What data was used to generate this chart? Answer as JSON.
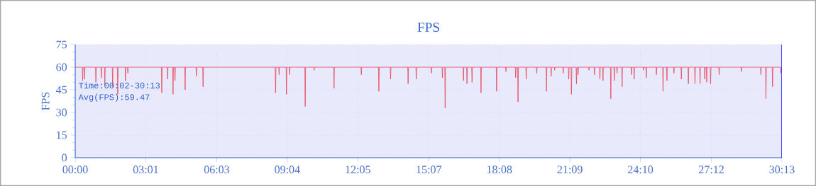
{
  "chart_data": {
    "type": "line",
    "title": "FPS",
    "ylabel": "FPS",
    "annotations": [
      "Time:00:02-30:13",
      "Avg(FPS):59.47"
    ],
    "xlim": [
      0,
      1813
    ],
    "ylim": [
      0,
      75
    ],
    "xticks": [
      {
        "value": 0,
        "label": "00:00"
      },
      {
        "value": 181,
        "label": "03:01"
      },
      {
        "value": 363,
        "label": "06:03"
      },
      {
        "value": 544,
        "label": "09:04"
      },
      {
        "value": 725,
        "label": "12:05"
      },
      {
        "value": 907,
        "label": "15:07"
      },
      {
        "value": 1088,
        "label": "18:08"
      },
      {
        "value": 1269,
        "label": "21:09"
      },
      {
        "value": 1450,
        "label": "24:10"
      },
      {
        "value": 1632,
        "label": "27:12"
      },
      {
        "value": 1813,
        "label": "30:13"
      }
    ],
    "yticks": [
      0,
      15,
      30,
      45,
      60,
      75
    ],
    "grid": true,
    "marker": "none",
    "line_style": "solid",
    "series": [
      {
        "color": "#e8455a",
        "x": [
          0,
          18,
          19,
          20,
          23,
          24,
          25,
          52,
          53,
          54,
          66,
          67,
          68,
          75,
          76,
          77,
          95,
          96,
          97,
          108,
          109,
          110,
          128,
          129,
          130,
          134,
          135,
          136,
          221,
          222,
          223,
          236,
          237,
          238,
          250,
          251,
          252,
          255,
          256,
          257,
          281,
          282,
          283,
          310,
          311,
          312,
          327,
          328,
          329,
          513,
          514,
          515,
          522,
          523,
          524,
          541,
          542,
          543,
          549,
          550,
          551,
          589,
          590,
          591,
          612,
          613,
          614,
          663,
          664,
          665,
          733,
          734,
          735,
          778,
          779,
          780,
          808,
          809,
          810,
          853,
          854,
          855,
          874,
          875,
          876,
          913,
          914,
          915,
          941,
          942,
          943,
          948,
          949,
          950,
          995,
          996,
          997,
          1004,
          1005,
          1006,
          1017,
          1018,
          1019,
          1040,
          1041,
          1042,
          1080,
          1081,
          1082,
          1104,
          1105,
          1106,
          1129,
          1130,
          1131,
          1135,
          1136,
          1137,
          1156,
          1157,
          1158,
          1183,
          1184,
          1185,
          1208,
          1209,
          1210,
          1220,
          1221,
          1222,
          1229,
          1230,
          1231,
          1251,
          1252,
          1253,
          1265,
          1266,
          1267,
          1272,
          1273,
          1274,
          1285,
          1286,
          1287,
          1289,
          1290,
          1291,
          1317,
          1318,
          1319,
          1331,
          1332,
          1333,
          1345,
          1346,
          1347,
          1353,
          1354,
          1355,
          1373,
          1374,
          1375,
          1382,
          1383,
          1384,
          1389,
          1390,
          1391,
          1402,
          1403,
          1404,
          1426,
          1427,
          1428,
          1433,
          1434,
          1435,
          1457,
          1458,
          1459,
          1464,
          1465,
          1466,
          1490,
          1491,
          1492,
          1507,
          1508,
          1509,
          1517,
          1518,
          1519,
          1535,
          1536,
          1537,
          1554,
          1555,
          1556,
          1572,
          1573,
          1574,
          1589,
          1590,
          1591,
          1602,
          1603,
          1604,
          1614,
          1615,
          1616,
          1619,
          1620,
          1621,
          1629,
          1630,
          1631,
          1651,
          1652,
          1653,
          1708,
          1709,
          1710,
          1758,
          1759,
          1760,
          1771,
          1772,
          1773,
          1788,
          1789,
          1790,
          1809,
          1810,
          1813
        ],
        "values": [
          60,
          60,
          51,
          60,
          60,
          52,
          60,
          60,
          50,
          60,
          60,
          53,
          60,
          60,
          48,
          60,
          60,
          47,
          60,
          60,
          42,
          60,
          60,
          51,
          60,
          60,
          56,
          60,
          60,
          43,
          60,
          60,
          52,
          60,
          60,
          42,
          60,
          60,
          51,
          60,
          60,
          45,
          60,
          60,
          54,
          60,
          60,
          47,
          60,
          60,
          43,
          60,
          60,
          55,
          60,
          60,
          42,
          60,
          60,
          55,
          60,
          60,
          34,
          60,
          60,
          58,
          60,
          60,
          46,
          60,
          60,
          55,
          60,
          60,
          44,
          60,
          60,
          52,
          60,
          60,
          49,
          60,
          60,
          52,
          60,
          60,
          56,
          60,
          60,
          53,
          60,
          60,
          33,
          60,
          60,
          51,
          60,
          60,
          49,
          60,
          60,
          50,
          60,
          60,
          43,
          60,
          60,
          44,
          60,
          60,
          57,
          60,
          60,
          53,
          60,
          60,
          37,
          60,
          60,
          52,
          60,
          60,
          56,
          60,
          60,
          44,
          60,
          60,
          54,
          60,
          60,
          58,
          60,
          60,
          56,
          60,
          60,
          52,
          60,
          60,
          42,
          60,
          60,
          49,
          60,
          60,
          55,
          60,
          60,
          58,
          60,
          60,
          55,
          60,
          60,
          52,
          60,
          60,
          51,
          60,
          60,
          39,
          60,
          60,
          51,
          60,
          60,
          56,
          60,
          60,
          47,
          60,
          60,
          55,
          60,
          60,
          52,
          60,
          60,
          58,
          60,
          60,
          53,
          60,
          60,
          55,
          60,
          60,
          44,
          60,
          60,
          51,
          60,
          60,
          56,
          60,
          60,
          52,
          60,
          60,
          49,
          60,
          60,
          49,
          60,
          60,
          49,
          60,
          60,
          52,
          60,
          60,
          50,
          60,
          60,
          49,
          60,
          60,
          55,
          60,
          60,
          57,
          60,
          60,
          55,
          60,
          60,
          39,
          60,
          60,
          47,
          60,
          60,
          56,
          60
        ]
      }
    ]
  }
}
